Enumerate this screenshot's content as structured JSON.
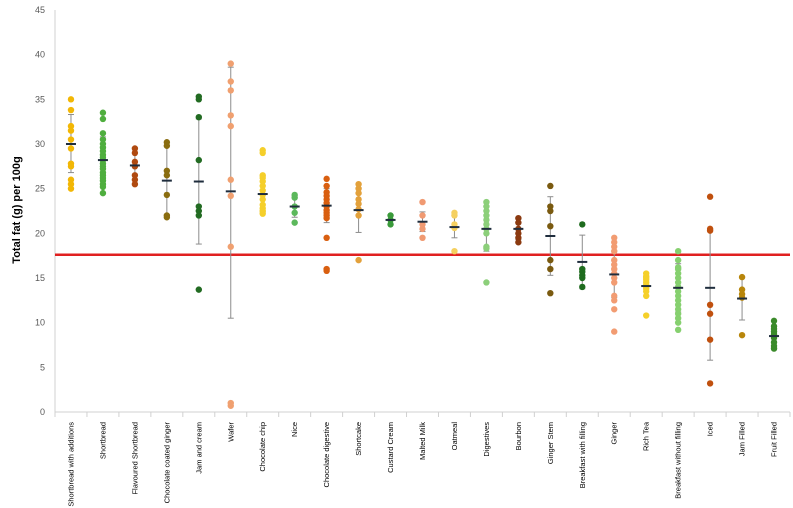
{
  "chart_data": {
    "type": "scatter",
    "title": "",
    "xlabel": "",
    "ylabel": "Total fat (g) per 100g",
    "ylim": [
      0,
      45
    ],
    "yticks": [
      0,
      5,
      10,
      15,
      20,
      25,
      30,
      35,
      40,
      45
    ],
    "grid": false,
    "reference_line": {
      "value": 17.6,
      "color": "#e02020"
    },
    "categories": [
      {
        "name": "Shortbread with additions",
        "color": "#f2b705",
        "points": [
          35,
          33.8,
          32,
          31.5,
          30.5,
          29.5,
          27.8,
          27.5,
          26,
          25.5,
          25
        ],
        "mean": 30.0,
        "error": [
          26.8,
          33.3
        ]
      },
      {
        "name": "Shortbread",
        "color": "#4fae3e",
        "points": [
          33.5,
          32.8,
          31.2,
          30.5,
          30,
          29.6,
          29.2,
          28.8,
          28.5,
          28.2,
          27.8,
          27.5,
          27.2,
          26.8,
          26.5,
          26.2,
          25.9,
          25.5,
          25.2,
          24.5
        ],
        "mean": 28.2,
        "error": [
          25.8,
          30.8
        ]
      },
      {
        "name": "Flavoured Shortbread",
        "color": "#b04a10",
        "points": [
          29.5,
          29,
          28,
          27.5,
          26.5,
          26,
          25.5
        ],
        "mean": 27.6,
        "error": [
          26.0,
          29.0
        ]
      },
      {
        "name": "Chocolate coated ginger",
        "color": "#8a6d10",
        "points": [
          30.2,
          29.8,
          27,
          26.5,
          24.3,
          22,
          21.8
        ],
        "mean": 25.9,
        "error": [
          22.0,
          29.8
        ]
      },
      {
        "name": "Jam and cream",
        "color": "#226b22",
        "points": [
          35.3,
          35,
          33,
          28.2,
          23,
          22.5,
          22,
          13.7
        ],
        "mean": 25.8,
        "error": [
          18.8,
          32.8
        ]
      },
      {
        "name": "Wafer",
        "color": "#f0a070",
        "points": [
          39,
          37,
          36,
          33.2,
          32,
          26,
          24.2,
          18.5,
          1,
          0.7
        ],
        "mean": 24.7,
        "error": [
          10.5,
          38.6
        ]
      },
      {
        "name": "Chocolate chip",
        "color": "#f5cf2a",
        "points": [
          29.3,
          29,
          26.5,
          26.2,
          25.8,
          25.3,
          24.8,
          24.3,
          23.8,
          23.2,
          22.8,
          22.5,
          22.2
        ],
        "mean": 24.4,
        "error": [
          22.4,
          26.4
        ]
      },
      {
        "name": "Nice",
        "color": "#5cb85c",
        "points": [
          24.3,
          24,
          23,
          22.3,
          21.2
        ],
        "mean": 23.0,
        "error": [
          21.8,
          24.2
        ]
      },
      {
        "name": "Chocolate digestive",
        "color": "#d95f10",
        "points": [
          26.1,
          25.3,
          24.6,
          24.2,
          23.8,
          23.4,
          23,
          22.6,
          22.3,
          22,
          21.7,
          19.5,
          16,
          15.8
        ],
        "mean": 23.1,
        "error": [
          21.2,
          25.0
        ]
      },
      {
        "name": "Shortcake",
        "color": "#e3a13b",
        "points": [
          25.5,
          25,
          24.5,
          23.8,
          23.3,
          22.7,
          22,
          17
        ],
        "mean": 22.6,
        "error": [
          20.1,
          25.1
        ]
      },
      {
        "name": "Custard Cream",
        "color": "#3a9a3a",
        "points": [
          22,
          21.5,
          21
        ],
        "mean": 21.5,
        "error": [
          21.0,
          22.0
        ]
      },
      {
        "name": "Malted Milk",
        "color": "#f09a72",
        "points": [
          23.5,
          22,
          21,
          20.5,
          19.5
        ],
        "mean": 21.3,
        "error": [
          20.2,
          22.4
        ]
      },
      {
        "name": "Oatmeal",
        "color": "#f5d060",
        "points": [
          22.3,
          22,
          21,
          20.6,
          18
        ],
        "mean": 20.7,
        "error": [
          19.5,
          22.0
        ]
      },
      {
        "name": "Digestives",
        "color": "#8ccf7a",
        "points": [
          23.5,
          23,
          22.5,
          22,
          21.5,
          21,
          20.5,
          20,
          18.5,
          18.3,
          14.5
        ],
        "mean": 20.5,
        "error": [
          18.0,
          23.0
        ]
      },
      {
        "name": "Bourbon",
        "color": "#8b3a10",
        "points": [
          21.7,
          21.2,
          20.5,
          20,
          19.5,
          19
        ],
        "mean": 20.5,
        "error": [
          19.3,
          21.6
        ]
      },
      {
        "name": "Ginger Stem",
        "color": "#7a5a10",
        "points": [
          25.3,
          23,
          22.5,
          20.8,
          17,
          16,
          13.3
        ],
        "mean": 19.7,
        "error": [
          15.3,
          24.1
        ]
      },
      {
        "name": "Breakfast with filling",
        "color": "#1e6b1e",
        "points": [
          21,
          16,
          15.7,
          15.3,
          15,
          14
        ],
        "mean": 16.8,
        "error": [
          13.8,
          19.8
        ]
      },
      {
        "name": "Ginger",
        "color": "#f29c72",
        "points": [
          19.5,
          19,
          18.5,
          18,
          17,
          16.5,
          16,
          15.5,
          15,
          14.5,
          13,
          12.5,
          11.5,
          9
        ],
        "mean": 15.4,
        "error": [
          12.8,
          18.0
        ]
      },
      {
        "name": "Rich Tea",
        "color": "#f5d02a",
        "points": [
          15.5,
          15.2,
          15,
          14.8,
          14.5,
          14.2,
          14,
          13.8,
          13.5,
          13,
          10.8
        ],
        "mean": 14.1,
        "error": [
          13.0,
          15.2
        ]
      },
      {
        "name": "Breakfast without filling",
        "color": "#86d06f",
        "points": [
          18,
          17,
          16.2,
          16,
          15.5,
          15,
          14.5,
          14,
          13.5,
          13,
          12.5,
          12,
          11.5,
          11,
          10.5,
          10,
          9.2
        ],
        "mean": 13.9,
        "error": [
          11.2,
          16.6
        ]
      },
      {
        "name": "Iced",
        "color": "#c0500e",
        "points": [
          24.1,
          20.5,
          20.3,
          12,
          11,
          8.1,
          3.2
        ],
        "mean": 13.9,
        "error": [
          5.8,
          20.5
        ]
      },
      {
        "name": "Jam Filled",
        "color": "#b8860b",
        "points": [
          15.1,
          13.7,
          13.2,
          12.8,
          8.6
        ],
        "mean": 12.7,
        "error": [
          10.3,
          15.1
        ]
      },
      {
        "name": "Fruit Filled",
        "color": "#3a8a2a",
        "points": [
          10.2,
          9.6,
          9.3,
          9,
          8.7,
          8.3,
          7.8,
          7.4,
          7.1
        ],
        "mean": 8.5,
        "error": [
          7.5,
          9.6
        ]
      }
    ]
  }
}
